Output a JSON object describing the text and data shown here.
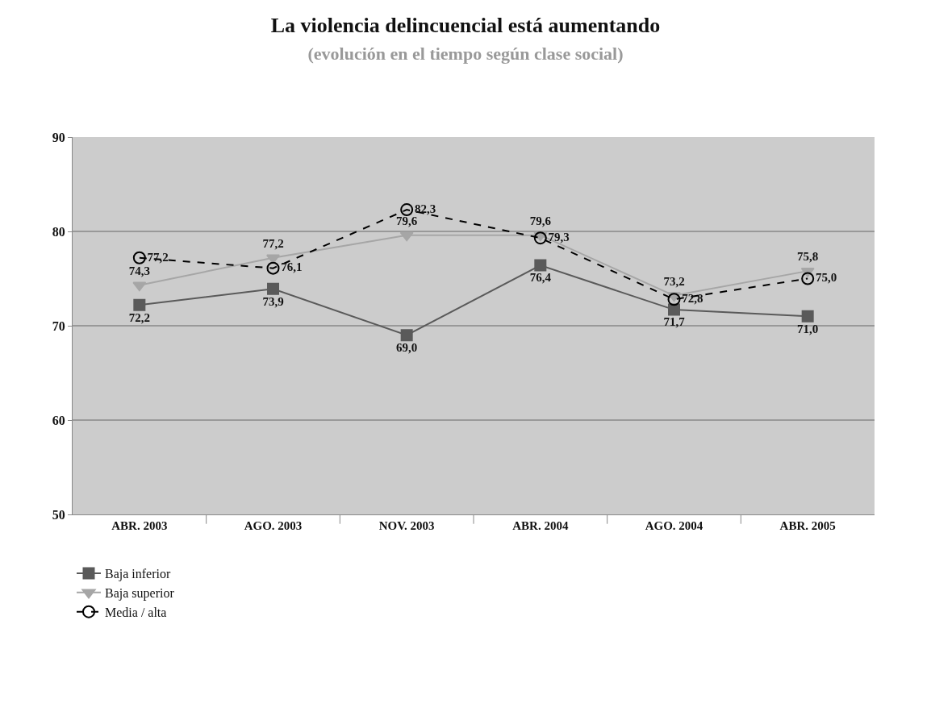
{
  "chart_data": {
    "type": "line",
    "title": "La violencia delincuencial está aumentando",
    "subtitle": "(evolución en el tiempo según clase social)",
    "categories": [
      "ABR. 2003",
      "AGO. 2003",
      "NOV. 2003",
      "ABR. 2004",
      "AGO. 2004",
      "ABR. 2005"
    ],
    "series": [
      {
        "name": "Baja inferior",
        "color": "#5a5a5a",
        "values": [
          72.2,
          73.9,
          69.0,
          76.4,
          71.7,
          71.0
        ],
        "value_labels": [
          "72,2",
          "73,9",
          "69,0",
          "76,4",
          "71,7",
          "71,0"
        ],
        "marker": "square",
        "line_style": "solid"
      },
      {
        "name": "Baja superior",
        "color": "#a6a6a6",
        "values": [
          74.3,
          77.2,
          79.6,
          79.6,
          73.2,
          75.8
        ],
        "value_labels": [
          "74,3",
          "77,2",
          "79,6",
          "79,6",
          "73,2",
          "75,8"
        ],
        "marker": "triangle",
        "line_style": "solid"
      },
      {
        "name": "Media / alta",
        "color": "#000000",
        "values": [
          77.2,
          76.1,
          82.3,
          79.3,
          72.8,
          75.0
        ],
        "value_labels": [
          "77,2",
          "76,1",
          "82,3",
          "79,3",
          "72,8",
          "75,0"
        ],
        "marker": "circle",
        "line_style": "dashed"
      }
    ],
    "ylim": [
      50,
      90
    ],
    "yticks": [
      50,
      60,
      70,
      80,
      90
    ],
    "grid": "y",
    "legend": "bottom left"
  }
}
